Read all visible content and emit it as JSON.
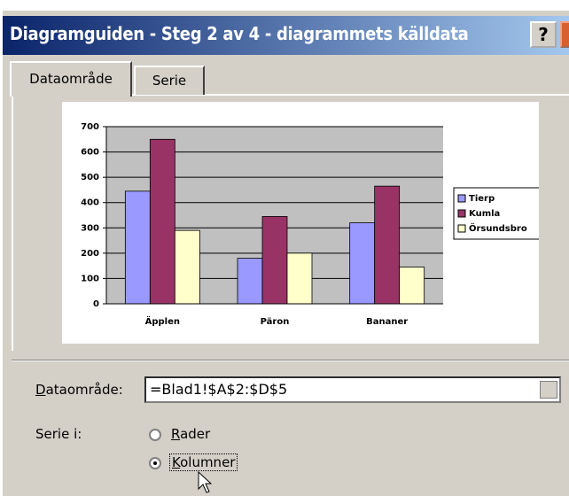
{
  "window": {
    "title": "Diagramguiden - Steg 2 av 4 - diagrammets källdata",
    "help": "?"
  },
  "tabs": [
    "Dataområde",
    "Serie"
  ],
  "chart_data": {
    "type": "bar",
    "categories": [
      "Äpplen",
      "Päron",
      "Bananer"
    ],
    "series": [
      {
        "name": "Tierp",
        "color": "#9999ff",
        "values": [
          445,
          180,
          320
        ]
      },
      {
        "name": "Kumla",
        "color": "#993366",
        "values": [
          650,
          345,
          465
        ]
      },
      {
        "name": "Örsundsbro",
        "color": "#ffffcc",
        "values": [
          290,
          200,
          145
        ]
      }
    ],
    "ylim": [
      0,
      700
    ],
    "yticks": [
      0,
      100,
      200,
      300,
      400,
      500,
      600,
      700
    ],
    "grid": true,
    "legend": "right"
  },
  "form": {
    "range_label": "Dataområde:",
    "range_value": "=Blad1!$A$2:$D$5",
    "series_label": "Serie i:",
    "options": [
      "Rader",
      "Kolumner"
    ],
    "selected": "Kolumner"
  }
}
